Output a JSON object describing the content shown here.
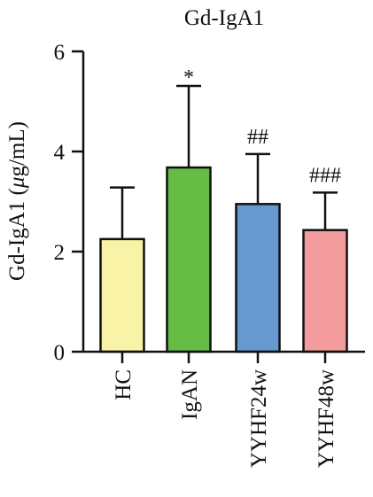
{
  "chart_data": {
    "type": "bar",
    "title": "Gd-IgA1",
    "ylabel_prefix": "Gd-IgA1 (",
    "ylabel_mu": "μ",
    "ylabel_suffix": "g/mL)",
    "xlabel": "",
    "ylim": [
      0,
      6
    ],
    "yticks": [
      0,
      2,
      4,
      6
    ],
    "grid": false,
    "categories": [
      "HC",
      "IgAN",
      "YYHF24w",
      "YYHF48w"
    ],
    "values": [
      2.25,
      3.68,
      2.95,
      2.43
    ],
    "errors": [
      1.03,
      1.63,
      1.0,
      0.75
    ],
    "significance": [
      "",
      "*",
      "##",
      "###"
    ],
    "colors": [
      "#f8f3a6",
      "#66bb45",
      "#6699cf",
      "#f39b9d"
    ]
  }
}
